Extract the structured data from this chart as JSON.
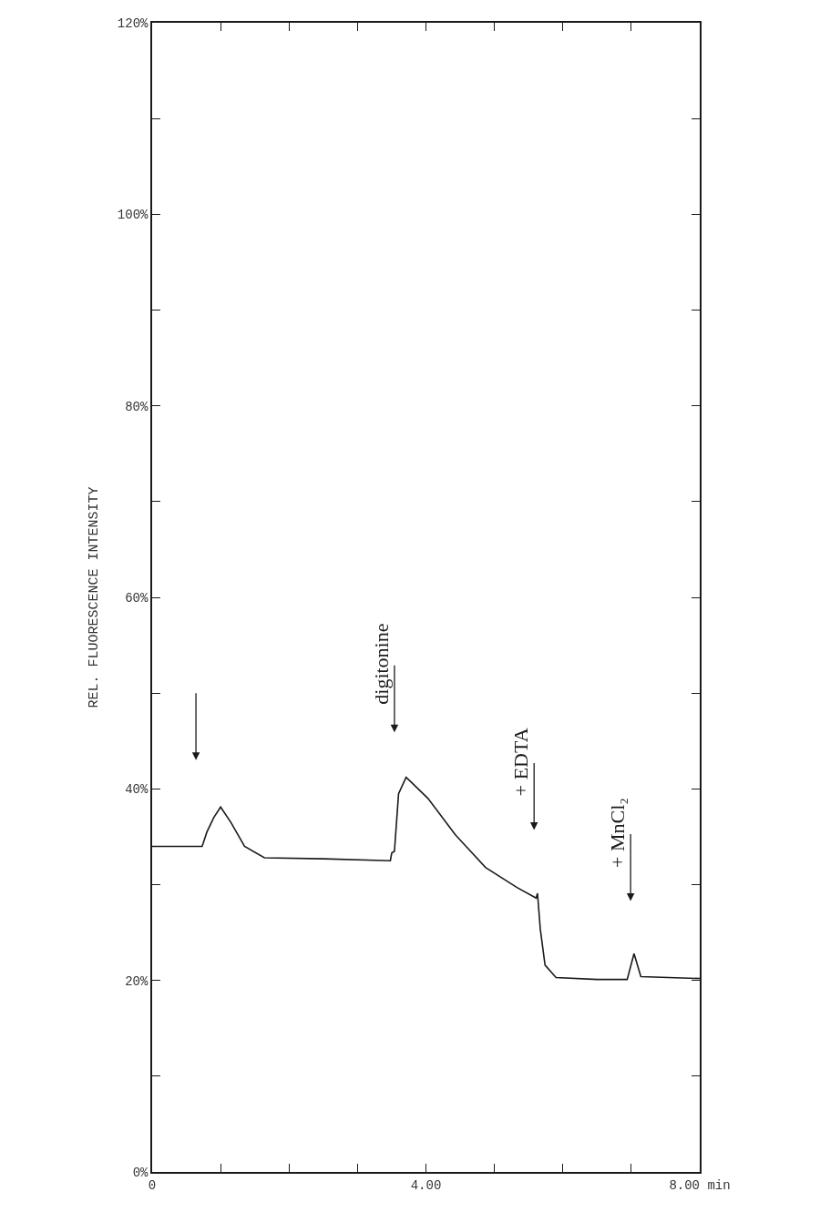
{
  "chart_data": {
    "type": "line",
    "ylabel": "REL. FLUORESCENCE INTENSITY",
    "x": [
      0,
      0.73,
      0.8,
      0.9,
      1.0,
      1.15,
      1.35,
      1.64,
      2.5,
      3.48,
      3.5,
      3.54,
      3.6,
      3.71,
      3.77,
      4.03,
      4.43,
      4.87,
      5.33,
      5.61,
      5.63,
      5.67,
      5.74,
      5.9,
      6.5,
      6.94,
      7.04,
      7.14,
      8.0
    ],
    "series": [
      {
        "color": "#1a1a1a",
        "values": [
          34.0,
          34.0,
          35.5,
          37.0,
          38.1,
          36.5,
          34.0,
          32.8,
          32.7,
          32.5,
          33.3,
          33.5,
          39.5,
          41.2,
          40.8,
          39.0,
          35.2,
          31.8,
          29.7,
          28.6,
          29.1,
          25.4,
          21.6,
          20.3,
          20.1,
          20.1,
          22.8,
          20.4,
          20.2
        ]
      }
    ],
    "xlim": [
      0,
      8
    ],
    "xticks": [
      0,
      {
        "value": 1,
        "label": null
      },
      {
        "value": 2,
        "label": null
      },
      {
        "value": 3,
        "label": null
      },
      {
        "value": 4,
        "label": "4.00"
      },
      {
        "value": 5,
        "label": null
      },
      {
        "value": 6,
        "label": null
      },
      {
        "value": 7,
        "label": null
      },
      {
        "value": 8,
        "label": "8.00 min"
      }
    ],
    "ylim": [
      0,
      120
    ],
    "yticks": [
      {
        "value": 0,
        "label": "0%"
      },
      {
        "value": 10,
        "label": null
      },
      {
        "value": 20,
        "label": "20%"
      },
      {
        "value": 30,
        "label": null
      },
      {
        "value": 40,
        "label": "40%"
      },
      {
        "value": 50,
        "label": null
      },
      {
        "value": 60,
        "label": "60%"
      },
      {
        "value": 70,
        "label": null
      },
      {
        "value": 80,
        "label": "80%"
      },
      {
        "value": 90,
        "label": null
      },
      {
        "value": 100,
        "label": "100%"
      },
      {
        "value": 110,
        "label": null
      },
      {
        "value": 120,
        "label": "120%"
      }
    ],
    "annotations": [
      "digitonine",
      "+ EDTA",
      "+ MnCl₂"
    ],
    "marker": "none",
    "line_style": "solid"
  }
}
